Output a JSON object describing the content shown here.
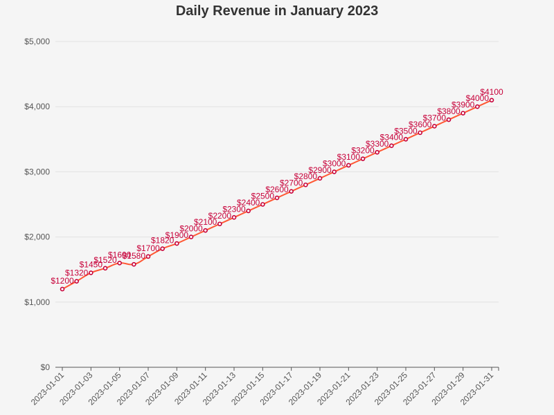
{
  "chart_data": {
    "type": "line",
    "title": "Daily Revenue in January 2023",
    "xlabel": "",
    "ylabel": "",
    "x": [
      "2023-01-01",
      "2023-01-02",
      "2023-01-03",
      "2023-01-04",
      "2023-01-05",
      "2023-01-06",
      "2023-01-07",
      "2023-01-08",
      "2023-01-09",
      "2023-01-10",
      "2023-01-11",
      "2023-01-12",
      "2023-01-13",
      "2023-01-14",
      "2023-01-15",
      "2023-01-16",
      "2023-01-17",
      "2023-01-18",
      "2023-01-19",
      "2023-01-20",
      "2023-01-21",
      "2023-01-22",
      "2023-01-23",
      "2023-01-24",
      "2023-01-25",
      "2023-01-26",
      "2023-01-27",
      "2023-01-28",
      "2023-01-29",
      "2023-01-30",
      "2023-01-31"
    ],
    "series": [
      {
        "values": [
          1200,
          1320,
          1450,
          1520,
          1600,
          1580,
          1700,
          1820,
          1900,
          2000,
          2100,
          2200,
          2300,
          2400,
          2500,
          2600,
          2700,
          2800,
          2900,
          3000,
          3100,
          3200,
          3300,
          3400,
          3500,
          3600,
          3700,
          3800,
          3900,
          4000,
          4100
        ],
        "data_labels": [
          "$1200",
          "$1320",
          "$1450",
          "$1520",
          "$1600",
          "$1580",
          "$1700",
          "$1820",
          "$1900",
          "$2000",
          "$2100",
          "$2200",
          "$2300",
          "$2400",
          "$2500",
          "$2600",
          "$2700",
          "$2800",
          "$2900",
          "$3000",
          "$3100",
          "$3200",
          "$3300",
          "$3400",
          "$3500",
          "$3600",
          "$3700",
          "$3800",
          "$3900",
          "$4000",
          "$4100"
        ]
      }
    ],
    "xticks": [
      "2023-01-01",
      "2023-01-03",
      "2023-01-05",
      "2023-01-07",
      "2023-01-09",
      "2023-01-11",
      "2023-01-13",
      "2023-01-15",
      "2023-01-17",
      "2023-01-19",
      "2023-01-21",
      "2023-01-23",
      "2023-01-25",
      "2023-01-27",
      "2023-01-29",
      "2023-01-31"
    ],
    "yticks": [
      0,
      1000,
      2000,
      3000,
      4000,
      5000
    ],
    "ytick_labels": [
      "$0",
      "$1,000",
      "$2,000",
      "$3,000",
      "$4,000",
      "$5,000"
    ],
    "ylim": [
      0,
      5000
    ],
    "grid": true,
    "legend": "none",
    "colors": {
      "line": "#ff5733",
      "marker_stroke": "#c70039",
      "marker_fill": "#ffffff",
      "data_label": "#c70039",
      "background": "#f5f5f5"
    }
  }
}
